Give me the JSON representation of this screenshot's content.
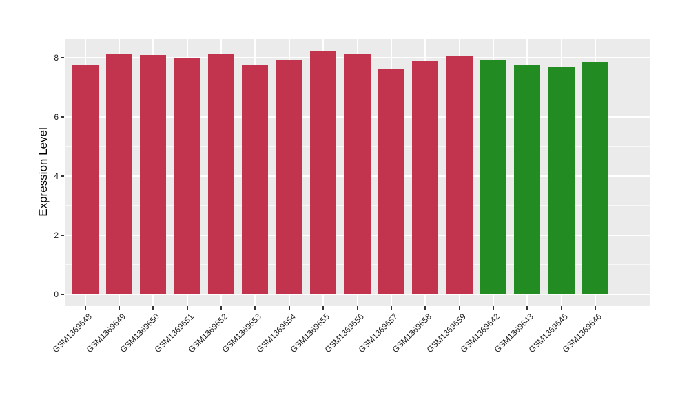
{
  "chart_data": {
    "type": "bar",
    "title": "",
    "xlabel": "",
    "ylabel": "Expression Level",
    "ylim": [
      0,
      8.64
    ],
    "yticks": [
      0,
      2,
      4,
      6,
      8
    ],
    "yminorticks": [
      1,
      3,
      5,
      7
    ],
    "grid": "major-white-and-minor-on-gray-panel",
    "legend_position": "none",
    "panel_background": "#EBEBEB",
    "gridline_color": "#FFFFFF",
    "tick_color": "#333333",
    "group_colors": {
      "red": "#C2334E",
      "green": "#228B22"
    },
    "categories": [
      "GSM1369648",
      "GSM1369649",
      "GSM1369650",
      "GSM1369651",
      "GSM1369652",
      "GSM1369653",
      "GSM1369654",
      "GSM1369655",
      "GSM1369656",
      "GSM1369657",
      "GSM1369658",
      "GSM1369659",
      "GSM1369642",
      "GSM1369643",
      "GSM1369645",
      "GSM1369646"
    ],
    "bars": [
      {
        "label": "GSM1369648",
        "value": 7.76,
        "group": "red"
      },
      {
        "label": "GSM1369649",
        "value": 8.12,
        "group": "red"
      },
      {
        "label": "GSM1369650",
        "value": 8.07,
        "group": "red"
      },
      {
        "label": "GSM1369651",
        "value": 7.97,
        "group": "red"
      },
      {
        "label": "GSM1369652",
        "value": 8.11,
        "group": "red"
      },
      {
        "label": "GSM1369653",
        "value": 7.76,
        "group": "red"
      },
      {
        "label": "GSM1369654",
        "value": 7.92,
        "group": "red"
      },
      {
        "label": "GSM1369655",
        "value": 8.23,
        "group": "red"
      },
      {
        "label": "GSM1369656",
        "value": 8.1,
        "group": "red"
      },
      {
        "label": "GSM1369657",
        "value": 7.62,
        "group": "red"
      },
      {
        "label": "GSM1369658",
        "value": 7.9,
        "group": "red"
      },
      {
        "label": "GSM1369659",
        "value": 8.03,
        "group": "red"
      },
      {
        "label": "GSM1369642",
        "value": 7.93,
        "group": "green"
      },
      {
        "label": "GSM1369643",
        "value": 7.73,
        "group": "green"
      },
      {
        "label": "GSM1369645",
        "value": 7.68,
        "group": "green"
      },
      {
        "label": "GSM1369646",
        "value": 7.85,
        "group": "green"
      }
    ]
  }
}
